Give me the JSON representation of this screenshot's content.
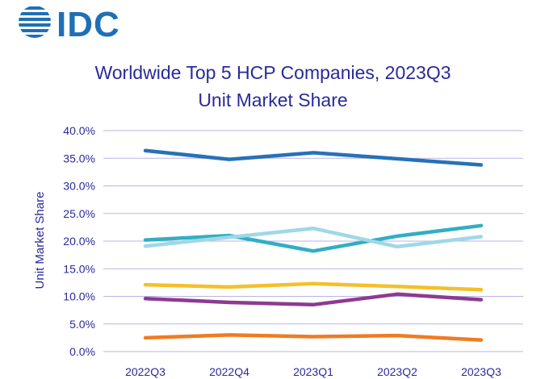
{
  "logo": {
    "text": "IDC",
    "color": "#1f6fb5"
  },
  "chart_data": {
    "type": "line",
    "title_lines": [
      "Worldwide Top 5 HCP Companies, 2023Q3",
      "Unit Market Share"
    ],
    "xlabel": "",
    "ylabel": "Unit Market Share",
    "ylim": [
      0,
      40
    ],
    "y_ticks": [
      "0.0%",
      "5.0%",
      "10.0%",
      "15.0%",
      "20.0%",
      "25.0%",
      "30.0%",
      "35.0%",
      "40.0%"
    ],
    "categories": [
      "2022Q3",
      "2022Q4",
      "2023Q1",
      "2023Q2",
      "2023Q3"
    ],
    "grid": true,
    "legend": "none",
    "series": [
      {
        "color": "#2771b8",
        "values": [
          36.4,
          34.8,
          36.0,
          34.9,
          33.8
        ]
      },
      {
        "color": "#31aec4",
        "values": [
          20.2,
          21.0,
          18.2,
          20.9,
          22.8
        ]
      },
      {
        "color": "#9fd8e6",
        "values": [
          19.1,
          20.7,
          22.3,
          19.0,
          20.8
        ]
      },
      {
        "color": "#f4c02a",
        "values": [
          12.1,
          11.7,
          12.3,
          11.8,
          11.2
        ]
      },
      {
        "color": "#8e3a90",
        "values": [
          9.6,
          8.9,
          8.5,
          10.4,
          9.4
        ]
      },
      {
        "color": "#f07b22",
        "values": [
          2.5,
          3.0,
          2.7,
          2.9,
          2.1
        ]
      }
    ]
  }
}
